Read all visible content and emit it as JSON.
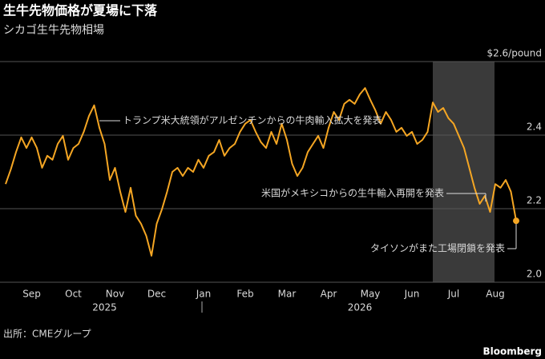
{
  "chart_data": {
    "type": "line",
    "title": "生牛先物価格が夏場に下落",
    "subtitle": "シカゴ生牛先物相場",
    "source": "出所：CMEグループ",
    "brand": "Bloomberg",
    "categories": [
      null,
      null,
      null,
      null,
      null,
      "Sep",
      null,
      null,
      null,
      null,
      null,
      null,
      null,
      "Oct",
      null,
      null,
      null,
      null,
      null,
      null,
      null,
      "Nov",
      null,
      null,
      null,
      null,
      null,
      null,
      null,
      "Dec",
      null,
      null,
      null,
      null,
      null,
      null,
      null,
      null,
      "Jan",
      null,
      null,
      null,
      null,
      null,
      null,
      null,
      "Feb",
      null,
      null,
      null,
      null,
      null,
      null,
      null,
      "Mar",
      null,
      null,
      null,
      null,
      null,
      null,
      null,
      "Apr",
      null,
      null,
      null,
      null,
      null,
      null,
      null,
      "May",
      null,
      null,
      null,
      null,
      null,
      null,
      null,
      "Jun",
      null,
      null,
      null,
      null,
      null,
      null,
      null,
      "Jul",
      null,
      null,
      null,
      null,
      null,
      null,
      null,
      "Aug",
      null,
      null,
      null,
      null
    ],
    "year_labels": [
      null,
      null,
      null,
      null,
      null,
      null,
      null,
      null,
      null,
      null,
      null,
      null,
      null,
      null,
      null,
      null,
      null,
      null,
      null,
      "2025",
      null,
      null,
      null,
      null,
      null,
      null,
      null,
      null,
      null,
      null,
      null,
      null,
      null,
      null,
      null,
      null,
      null,
      null,
      null,
      null,
      null,
      null,
      null,
      null,
      null,
      null,
      null,
      null,
      null,
      null,
      null,
      null,
      null,
      null,
      null,
      null,
      null,
      null,
      null,
      null,
      null,
      null,
      null,
      null,
      null,
      null,
      null,
      null,
      "2026",
      null,
      null,
      null,
      null,
      null,
      null,
      null,
      null,
      null,
      null,
      null,
      null,
      null,
      null,
      null,
      null,
      null,
      null,
      null,
      null,
      null,
      null,
      null,
      null,
      null,
      null,
      null,
      null,
      null,
      null
    ],
    "series": [
      {
        "name": "生牛先物",
        "color": "#f5a623",
        "values": [
          2.267,
          2.307,
          2.354,
          2.394,
          2.365,
          2.394,
          2.365,
          2.311,
          2.344,
          2.333,
          2.376,
          2.398,
          2.333,
          2.365,
          2.376,
          2.409,
          2.452,
          2.481,
          2.42,
          2.376,
          2.278,
          2.311,
          2.246,
          2.191,
          2.257,
          2.181,
          2.159,
          2.126,
          2.072,
          2.159,
          2.198,
          2.246,
          2.3,
          2.311,
          2.289,
          2.311,
          2.3,
          2.333,
          2.311,
          2.344,
          2.354,
          2.387,
          2.344,
          2.365,
          2.376,
          2.409,
          2.431,
          2.441,
          2.409,
          2.381,
          2.365,
          2.409,
          2.376,
          2.431,
          2.387,
          2.322,
          2.289,
          2.311,
          2.354,
          2.376,
          2.398,
          2.365,
          2.42,
          2.463,
          2.441,
          2.485,
          2.496,
          2.485,
          2.511,
          2.528,
          2.496,
          2.467,
          2.431,
          2.463,
          2.441,
          2.409,
          2.42,
          2.398,
          2.409,
          2.376,
          2.387,
          2.409,
          2.489,
          2.463,
          2.474,
          2.446,
          2.431,
          2.398,
          2.365,
          2.311,
          2.257,
          2.213,
          2.235,
          2.191,
          2.267,
          2.257,
          2.278,
          2.246,
          2.167
        ]
      }
    ],
    "ylim": [
      2.0,
      2.6
    ],
    "yticks": [
      {
        "value": 2.0,
        "label": "2.0"
      },
      2.2,
      2.4,
      {
        "value": 2.6,
        "label": "$2.6/pound"
      }
    ],
    "grid": true,
    "annotations": [
      "トランプ米大統領がアルゼンチンからの牛肉輸入拡大を発表",
      "米国がメキシコからの生牛輸入再開を発表",
      "タイソンがまた工場閉鎖を発表"
    ]
  }
}
